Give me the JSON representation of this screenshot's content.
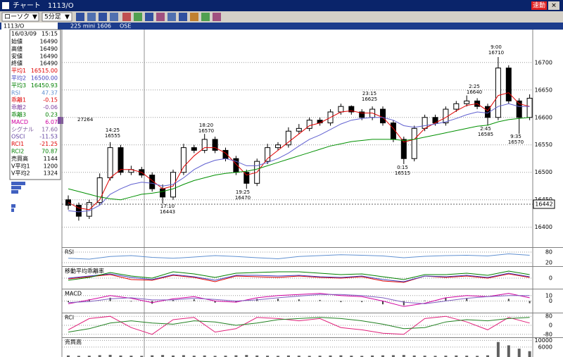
{
  "window": {
    "title": "チャート　1113/O",
    "button": "速動"
  },
  "toolbar": {
    "style": "ローソク",
    "interval": "5分足"
  },
  "header": {
    "code": "1113/O",
    "name": "225 mini 1606",
    "market": "OSE"
  },
  "info": {
    "date": "16/03/09",
    "time": "15:15",
    "rows": [
      {
        "label": "始値",
        "value": "16490",
        "color": "#000000"
      },
      {
        "label": "高値",
        "value": "16490",
        "color": "#000000"
      },
      {
        "label": "安値",
        "value": "16490",
        "color": "#000000"
      },
      {
        "label": "終値",
        "value": "16490",
        "color": "#000000"
      },
      {
        "label": "平均1",
        "value": "16515.00",
        "color": "#e00000"
      },
      {
        "label": "平均2",
        "value": "16500.00",
        "color": "#4040c0"
      },
      {
        "label": "平均3",
        "value": "16450.93",
        "color": "#008000"
      },
      {
        "label": "RSI",
        "value": "47.37",
        "color": "#6090d0"
      },
      {
        "label": "乖離1",
        "value": "-0.15",
        "color": "#e00000"
      },
      {
        "label": "乖離2",
        "value": "-0.06",
        "color": "#8040a0"
      },
      {
        "label": "乖離3",
        "value": "0.23",
        "color": "#008000"
      },
      {
        "label": "MACD",
        "value": "6.07",
        "color": "#d000a0"
      },
      {
        "label": "シグナル",
        "value": "17.60",
        "color": "#8060a0"
      },
      {
        "label": "OSCI",
        "value": "-11.53",
        "color": "#6040a0"
      },
      {
        "label": "RCI1",
        "value": "-21.25",
        "color": "#e00000"
      },
      {
        "label": "RCI2",
        "value": "70.87",
        "color": "#008000"
      },
      {
        "label": "売買高",
        "value": "1144",
        "color": "#000000"
      },
      {
        "label": "V平均1",
        "value": "1200",
        "color": "#000000"
      },
      {
        "label": "V平均2",
        "value": "1324",
        "color": "#000000"
      }
    ],
    "marker_label": "27264"
  },
  "chart_data": [
    {
      "type": "candlestick",
      "last_price": 16442,
      "ylim": [
        16365,
        16760
      ],
      "yticks": [
        16400,
        16450,
        16500,
        16550,
        16600,
        16650,
        16700
      ],
      "open": [
        16450,
        16440,
        16420,
        16445,
        16490,
        16545,
        16500,
        16505,
        16495,
        16470,
        16455,
        16500,
        16545,
        16540,
        16560,
        16540,
        16525,
        16500,
        16480,
        16520,
        16545,
        16550,
        16575,
        16580,
        16595,
        16590,
        16610,
        16620,
        16610,
        16600,
        16615,
        16590,
        16560,
        16525,
        16580,
        16600,
        16590,
        16615,
        16625,
        16630,
        16620,
        16600,
        16690,
        16630,
        16600
      ],
      "high": [
        16458,
        16445,
        16450,
        16498,
        16555,
        16550,
        16512,
        16510,
        16500,
        16478,
        16505,
        16552,
        16550,
        16570,
        16565,
        16545,
        16530,
        16505,
        16525,
        16552,
        16555,
        16582,
        16588,
        16600,
        16600,
        16615,
        16625,
        16622,
        16615,
        16620,
        16620,
        16595,
        16565,
        16585,
        16605,
        16605,
        16620,
        16630,
        16640,
        16635,
        16625,
        16710,
        16695,
        16635,
        16642
      ],
      "low": [
        16432,
        16412,
        16415,
        16440,
        16485,
        16495,
        16495,
        16490,
        16465,
        16443,
        16450,
        16495,
        16535,
        16535,
        16535,
        16520,
        16495,
        16470,
        16475,
        16515,
        16540,
        16545,
        16570,
        16575,
        16585,
        16585,
        16605,
        16605,
        16595,
        16595,
        16585,
        16555,
        16515,
        16520,
        16575,
        16585,
        16585,
        16610,
        16620,
        16615,
        16585,
        16595,
        16625,
        16570,
        16595
      ],
      "close": [
        16440,
        16420,
        16445,
        16490,
        16545,
        16500,
        16505,
        16495,
        16470,
        16455,
        16500,
        16545,
        16540,
        16560,
        16540,
        16525,
        16500,
        16480,
        16520,
        16545,
        16550,
        16575,
        16580,
        16595,
        16590,
        16610,
        16620,
        16610,
        16600,
        16615,
        16590,
        16560,
        16525,
        16580,
        16600,
        16590,
        16615,
        16625,
        16630,
        16620,
        16600,
        16690,
        16630,
        16600,
        16635
      ],
      "series": [
        {
          "color": "#e00000",
          "values": [
            16445,
            16435,
            16432,
            16450,
            16490,
            16505,
            16505,
            16500,
            16485,
            16470,
            16475,
            16510,
            16530,
            16545,
            16545,
            16535,
            16515,
            16495,
            16500,
            16525,
            16540,
            16555,
            16570,
            16585,
            16590,
            16600,
            16610,
            16612,
            16608,
            16608,
            16600,
            16580,
            16555,
            16560,
            16580,
            16590,
            16600,
            16612,
            16622,
            16625,
            16612,
            16640,
            16645,
            16625,
            16620
          ]
        },
        {
          "color": "#6060d0",
          "values": [
            16430,
            16428,
            16430,
            16440,
            16460,
            16470,
            16478,
            16482,
            16480,
            16475,
            16478,
            16490,
            16505,
            16515,
            16522,
            16525,
            16520,
            16512,
            16512,
            16518,
            16525,
            16535,
            16548,
            16560,
            16568,
            16578,
            16588,
            16595,
            16598,
            16600,
            16600,
            16595,
            16585,
            16582,
            16585,
            16588,
            16592,
            16598,
            16605,
            16610,
            16608,
            16620,
            16625,
            16620,
            16620
          ]
        },
        {
          "color": "#009000",
          "values": [
            16470,
            16465,
            16460,
            16455,
            16452,
            16450,
            16455,
            16460,
            16462,
            16465,
            16470,
            16478,
            16485,
            16490,
            16495,
            16498,
            16500,
            16502,
            16506,
            16512,
            16518,
            16524,
            16530,
            16536,
            16542,
            16548,
            16552,
            16556,
            16558,
            16560,
            16560,
            16560,
            16558,
            16560,
            16564,
            16568,
            16572,
            16576,
            16580,
            16584,
            16586,
            16592,
            16596,
            16598,
            16600
          ]
        }
      ],
      "annotations": [
        {
          "time": "14:25",
          "price": 16555
        },
        {
          "time": "18:20",
          "price": 16570
        },
        {
          "time": "17:10",
          "price": 16443
        },
        {
          "time": "19:25",
          "price": 16470
        },
        {
          "time": "23:15",
          "price": 16625
        },
        {
          "time": "0:15",
          "price": 16515
        },
        {
          "time": "2:25",
          "price": 16640
        },
        {
          "time": "9:00",
          "price": 16710
        },
        {
          "time": "2:45",
          "price": 16585
        },
        {
          "time": "9:35",
          "price": 16570
        }
      ]
    },
    {
      "type": "line",
      "title": "RSI",
      "ylim": [
        0,
        100
      ],
      "yticks": [
        80,
        20
      ],
      "series": [
        {
          "color": "#6090d0",
          "values": [
            45,
            40,
            55,
            60,
            50,
            45,
            52,
            60,
            55,
            48,
            42,
            55,
            60,
            65,
            62,
            58,
            48,
            56,
            60,
            62,
            58,
            70,
            62
          ]
        }
      ]
    },
    {
      "type": "line",
      "title": "移動平均乖離率",
      "ylim": [
        -1.5,
        1.5
      ],
      "yticks": [
        0
      ],
      "series": [
        {
          "color": "#e00000",
          "values": [
            -0.1,
            0.2,
            0.5,
            -0.2,
            -0.3,
            0.4,
            0.1,
            -0.5,
            0.3,
            0.2,
            0.1,
            0.3,
            0.1,
            0.0,
            0.2,
            -0.4,
            -0.6,
            0.3,
            0.1,
            0.3,
            0.0,
            0.6,
            0.1
          ]
        },
        {
          "color": "#4040c0",
          "values": [
            0.0,
            0.3,
            0.6,
            0.1,
            -0.2,
            0.5,
            0.2,
            -0.3,
            0.4,
            0.4,
            0.3,
            0.4,
            0.2,
            0.1,
            0.3,
            -0.2,
            -0.5,
            0.3,
            0.2,
            0.4,
            0.1,
            0.7,
            0.2
          ]
        },
        {
          "color": "#008000",
          "values": [
            -0.3,
            0.1,
            0.8,
            0.3,
            0.0,
            0.9,
            0.6,
            0.1,
            0.7,
            0.8,
            0.9,
            0.9,
            0.7,
            0.5,
            0.6,
            0.2,
            -0.2,
            0.5,
            0.5,
            0.7,
            0.4,
            1.0,
            0.5
          ]
        }
      ]
    },
    {
      "type": "macd",
      "title": "MACD",
      "ylim": [
        -20,
        20
      ],
      "yticks": [
        10,
        0
      ],
      "bars": {
        "color": "#404040",
        "values": [
          -2,
          3,
          6,
          -1,
          -5,
          2,
          3,
          -3,
          -2,
          4,
          4,
          3,
          2,
          -2,
          -2,
          -6,
          -8,
          1,
          6,
          5,
          0,
          4,
          -4
        ]
      },
      "series": [
        {
          "color": "#d000a0",
          "values": [
            -5,
            2,
            10,
            5,
            -3,
            4,
            8,
            0,
            -2,
            6,
            10,
            12,
            14,
            10,
            8,
            0,
            -10,
            -4,
            6,
            10,
            8,
            14,
            6
          ]
        },
        {
          "color": "#8060c0",
          "values": [
            -3,
            -1,
            4,
            6,
            2,
            2,
            5,
            3,
            0,
            2,
            6,
            9,
            12,
            12,
            10,
            6,
            -2,
            -5,
            0,
            5,
            8,
            10,
            10
          ]
        }
      ]
    },
    {
      "type": "line",
      "title": "RCI",
      "ylim": [
        -100,
        100
      ],
      "yticks": [
        80,
        0,
        -80
      ],
      "series": [
        {
          "color": "#e0207a",
          "values": [
            -40,
            60,
            80,
            -20,
            -80,
            50,
            70,
            -60,
            -30,
            70,
            60,
            40,
            60,
            -20,
            -40,
            -70,
            -80,
            60,
            80,
            30,
            -40,
            70,
            20
          ]
        },
        {
          "color": "#208020",
          "values": [
            -60,
            -30,
            20,
            40,
            20,
            10,
            40,
            30,
            0,
            20,
            50,
            60,
            70,
            60,
            40,
            10,
            -30,
            -20,
            30,
            50,
            40,
            60,
            70
          ]
        }
      ]
    },
    {
      "type": "volume",
      "title": "売買高",
      "ylim": [
        0,
        11000
      ],
      "yticks": [
        10000,
        6000
      ],
      "color": "#606060",
      "values": [
        900,
        700,
        800,
        1100,
        1300,
        900,
        800,
        700,
        1000,
        1200,
        900,
        1100,
        800,
        900,
        700,
        800,
        1000,
        1200,
        900,
        800,
        700,
        900,
        800,
        700,
        800,
        900,
        1000,
        800,
        700,
        900,
        1000,
        1100,
        1200,
        900,
        800,
        700,
        800,
        900,
        800,
        700,
        1000,
        9000,
        7000,
        5000,
        3500
      ]
    }
  ]
}
